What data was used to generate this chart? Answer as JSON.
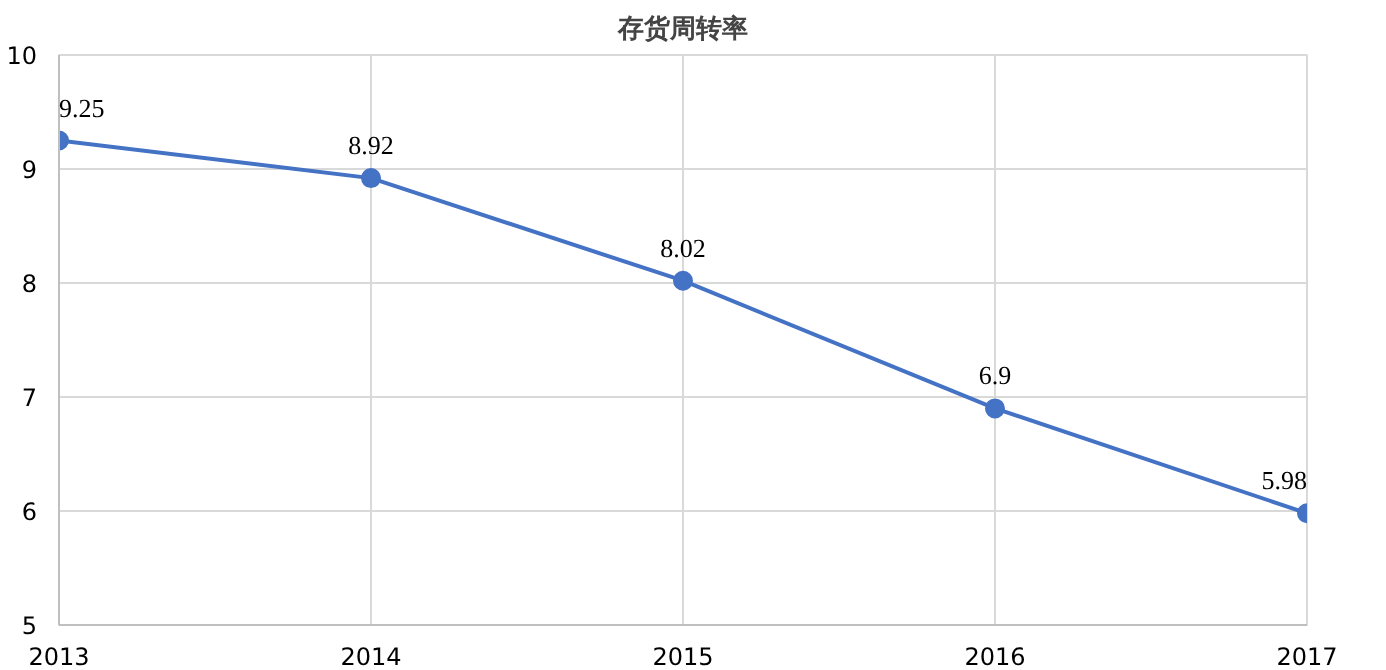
{
  "chart_data": {
    "type": "line",
    "title": "存货周转率",
    "x": [
      2013,
      2014,
      2015,
      2016,
      2017
    ],
    "series": [
      {
        "color": "#4472c4",
        "values": [
          9.25,
          8.92,
          8.02,
          6.9,
          5.98
        ]
      }
    ],
    "xlim": [
      2013,
      2017
    ],
    "xticks": [
      2013,
      2014,
      2015,
      2016,
      2017
    ],
    "ylim": [
      5,
      10
    ],
    "yticks": [
      5,
      6,
      7,
      8,
      9,
      10
    ],
    "grid": true,
    "marker": "circle",
    "line_style": "solid",
    "data_labels": true
  }
}
